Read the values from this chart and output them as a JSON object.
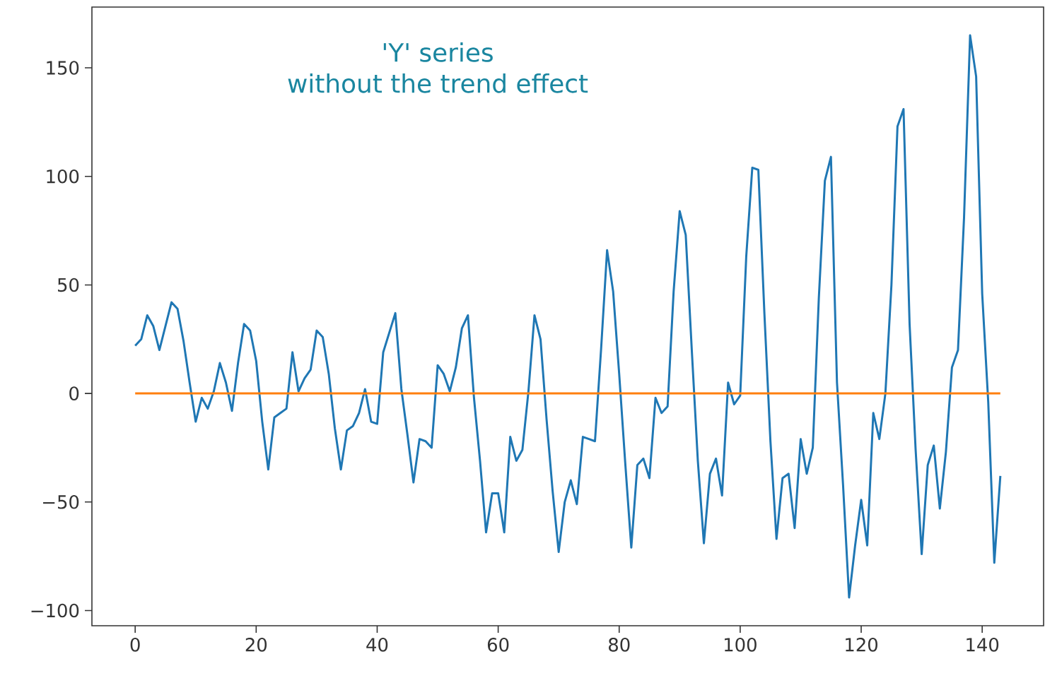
{
  "chart_data": {
    "type": "line",
    "title": "'Y' series",
    "subtitle": "without the trend effect",
    "xlim": [
      -7.15,
      150.15
    ],
    "ylim": [
      -107,
      178
    ],
    "xticks": [
      0,
      20,
      40,
      60,
      80,
      100,
      120,
      140
    ],
    "yticks": [
      {
        "value": -100,
        "label": "−100"
      },
      {
        "value": -50,
        "label": "−50"
      },
      0,
      50,
      100,
      150
    ],
    "series": [
      {
        "color": "#1f77b4",
        "x": [
          0,
          1,
          2,
          3,
          4,
          5,
          6,
          7,
          8,
          9,
          10,
          11,
          12,
          13,
          14,
          15,
          16,
          17,
          18,
          19,
          20,
          21,
          22,
          23,
          24,
          25,
          26,
          27,
          28,
          29,
          30,
          31,
          32,
          33,
          34,
          35,
          36,
          37,
          38,
          39,
          40,
          41,
          42,
          43,
          44,
          45,
          46,
          47,
          48,
          49,
          50,
          51,
          52,
          53,
          54,
          55,
          56,
          57,
          58,
          59,
          60,
          61,
          62,
          63,
          64,
          65,
          66,
          67,
          68,
          69,
          70,
          71,
          72,
          73,
          74,
          75,
          76,
          77,
          78,
          79,
          80,
          81,
          82,
          83,
          84,
          85,
          86,
          87,
          88,
          89,
          90,
          91,
          92,
          93,
          94,
          95,
          96,
          97,
          98,
          99,
          100,
          101,
          102,
          103,
          104,
          105,
          106,
          107,
          108,
          109,
          110,
          111,
          112,
          113,
          114,
          115,
          116,
          117,
          118,
          119,
          120,
          121,
          122,
          123,
          124,
          125,
          126,
          127,
          128,
          129,
          130,
          131,
          132,
          133,
          134,
          135,
          136,
          137,
          138,
          139,
          140,
          141,
          142,
          143
        ],
        "values": [
          22,
          25,
          36,
          31,
          20,
          31,
          42,
          39,
          24,
          5,
          -13,
          -2,
          -7,
          1,
          14,
          5,
          -8,
          14,
          32,
          29,
          15,
          -13,
          -35,
          -11,
          -9,
          -7,
          19,
          1,
          7,
          11,
          29,
          26,
          9,
          -16,
          -35,
          -17,
          -15,
          -9,
          2,
          -13,
          -14,
          19,
          28,
          37,
          2,
          -19,
          -41,
          -21,
          -22,
          -25,
          13,
          9,
          1,
          12,
          30,
          36,
          -2,
          -31,
          -64,
          -46,
          -46,
          -64,
          -20,
          -31,
          -26,
          1,
          36,
          25,
          -12,
          -45,
          -73,
          -50,
          -40,
          -51,
          -20,
          -21,
          -22,
          20,
          66,
          47,
          9,
          -32,
          -71,
          -33,
          -30,
          -39,
          -2,
          -9,
          -6,
          47,
          84,
          73,
          20,
          -31,
          -69,
          -37,
          -30,
          -47,
          5,
          -5,
          -1,
          63,
          104,
          103,
          37,
          -22,
          -67,
          -39,
          -37,
          -62,
          -21,
          -37,
          -25,
          44,
          98,
          109,
          5,
          -42,
          -94,
          -70,
          -49,
          -70,
          -9,
          -21,
          0,
          50,
          123,
          131,
          32,
          -26,
          -74,
          -33,
          -24,
          -53,
          -27,
          12,
          20,
          81,
          165,
          146,
          46,
          -4,
          -78,
          -38
        ]
      },
      {
        "color": "#ff7f0e",
        "x": [
          0,
          143
        ],
        "values": [
          0,
          0
        ]
      }
    ]
  }
}
